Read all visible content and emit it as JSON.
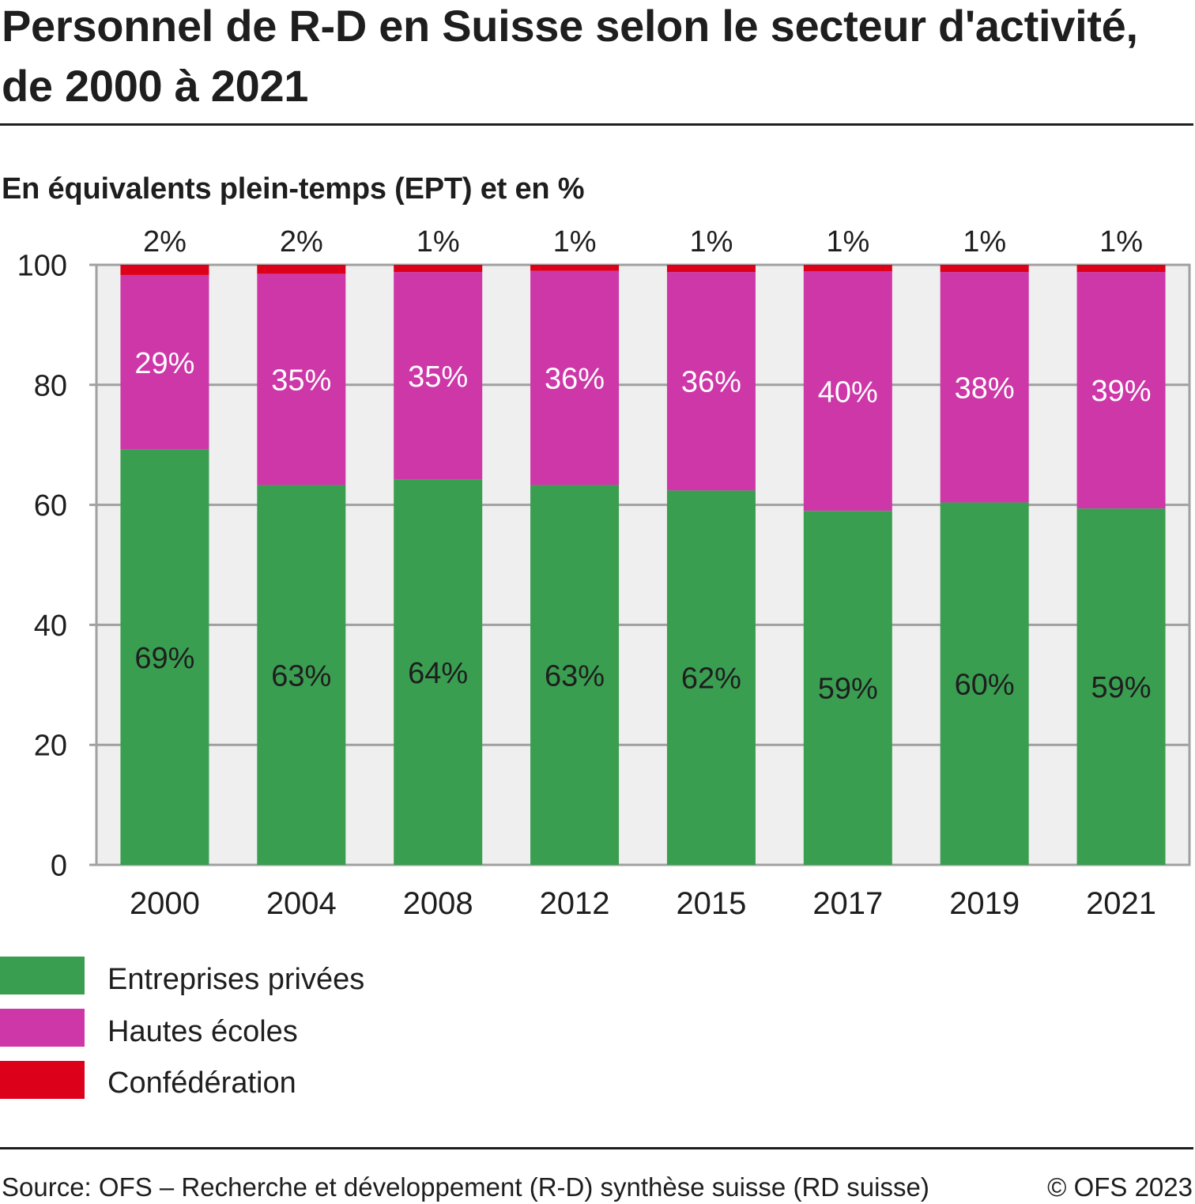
{
  "header": {
    "title_line1": "Personnel de R-D en Suisse selon le secteur d'activité,",
    "title_line2": "de 2000 à 2021",
    "subtitle": "En équivalents plein-temps (EPT) et en %"
  },
  "chart_data": {
    "type": "bar",
    "stacked": true,
    "title": "Personnel de R-D en Suisse selon le secteur d'activité, de 2000 à 2021",
    "subtitle": "En équivalents plein-temps (EPT) et en %",
    "xlabel": "",
    "ylabel": "",
    "categories": [
      "2000",
      "2004",
      "2008",
      "2012",
      "2015",
      "2017",
      "2019",
      "2021"
    ],
    "ylim": [
      0,
      100
    ],
    "yticks": [
      0,
      20,
      40,
      60,
      80,
      100
    ],
    "ytick_labels": [
      "0",
      "20",
      "40",
      "60",
      "80",
      "100"
    ],
    "grid": true,
    "legend_position": "bottom-left",
    "series": [
      {
        "name": "Entreprises privées",
        "color": "#3a9e51",
        "label_color": "#1e1e1e",
        "label_position": "inside",
        "values": [
          69.2,
          63.3,
          64.2,
          63.3,
          62.4,
          59.0,
          60.4,
          59.4
        ],
        "labels": [
          "69%",
          "63%",
          "64%",
          "63%",
          "62%",
          "59%",
          "60%",
          "59%"
        ]
      },
      {
        "name": "Hautes écoles",
        "color": "#cd37a8",
        "label_color": "#ffffff",
        "label_position": "inside",
        "values": [
          29.1,
          35.2,
          34.6,
          35.7,
          36.4,
          39.9,
          38.4,
          39.4
        ],
        "labels": [
          "29%",
          "35%",
          "35%",
          "36%",
          "36%",
          "40%",
          "38%",
          "39%"
        ]
      },
      {
        "name": "Confédération",
        "color": "#dd001b",
        "label_color": "#1e1e1e",
        "label_position": "above",
        "values": [
          1.7,
          1.5,
          1.2,
          1.0,
          1.2,
          1.1,
          1.2,
          1.2
        ],
        "labels": [
          "2%",
          "2%",
          "1%",
          "1%",
          "1%",
          "1%",
          "1%",
          "1%"
        ]
      }
    ]
  },
  "footer": {
    "source": "Source: OFS – Recherche et développement (R-D) synthèse suisse (RD suisse)",
    "copyright": "© OFS 2023"
  }
}
